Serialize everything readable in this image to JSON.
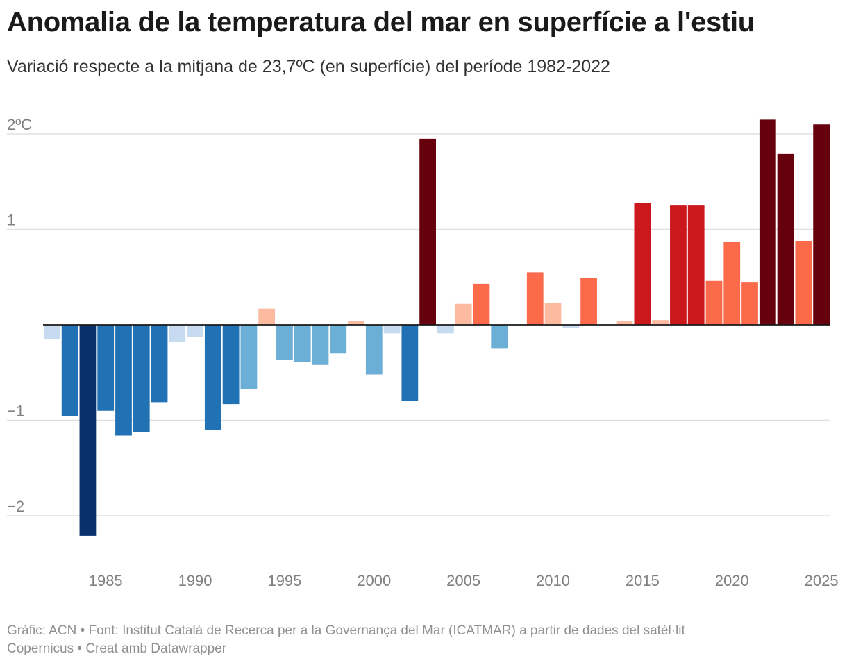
{
  "title": "Anomalia de la temperatura del mar en superfície a l'estiu",
  "subtitle": "Variació respecte a la mitjana de 23,7ºC (en superfície) del període 1982-2022",
  "footer": {
    "line1": "Gràfic: ACN • Font: Institut Català de Recerca per a la Governança del Mar (ICATMAR) a partir de dades del satèl·lit",
    "line2": "Copernicus  • Creat amb Datawrapper"
  },
  "chart_data": {
    "type": "bar",
    "title": "Anomalia de la temperatura del mar en superfície a l'estiu",
    "xlabel": "",
    "ylabel": "",
    "ylim": [
      -2.3,
      2.2
    ],
    "y_ticks": [
      {
        "value": 2,
        "label": "2ºC"
      },
      {
        "value": 1,
        "label": "1"
      },
      {
        "value": -1,
        "label": "−1"
      },
      {
        "value": -2,
        "label": "−2"
      }
    ],
    "x_ticks": [
      {
        "value": 1985,
        "label": "1985"
      },
      {
        "value": 1990,
        "label": "1990"
      },
      {
        "value": 1995,
        "label": "1995"
      },
      {
        "value": 2000,
        "label": "2000"
      },
      {
        "value": 2005,
        "label": "2005"
      },
      {
        "value": 2010,
        "label": "2010"
      },
      {
        "value": 2015,
        "label": "2015"
      },
      {
        "value": 2020,
        "label": "2020"
      },
      {
        "value": 2025,
        "label": "2025"
      }
    ],
    "categories": [
      1982,
      1983,
      1984,
      1985,
      1986,
      1987,
      1988,
      1989,
      1990,
      1991,
      1992,
      1993,
      1994,
      1995,
      1996,
      1997,
      1998,
      1999,
      2000,
      2001,
      2002,
      2003,
      2004,
      2005,
      2006,
      2007,
      2008,
      2009,
      2010,
      2011,
      2012,
      2013,
      2014,
      2015,
      2016,
      2017,
      2018,
      2019,
      2020,
      2021,
      2022,
      2023,
      2024,
      2025
    ],
    "values": [
      -0.15,
      -0.96,
      -2.21,
      -0.9,
      -1.16,
      -1.12,
      -0.81,
      -0.18,
      -0.13,
      -1.1,
      -0.83,
      -0.67,
      0.17,
      -0.37,
      -0.39,
      -0.42,
      -0.3,
      0.04,
      -0.52,
      -0.09,
      -0.8,
      1.95,
      -0.09,
      0.22,
      0.43,
      -0.25,
      0.0,
      0.55,
      0.23,
      -0.03,
      0.49,
      -0.01,
      0.04,
      1.28,
      0.05,
      1.25,
      1.25,
      0.46,
      0.87,
      0.45,
      2.15,
      1.79,
      0.88,
      2.1
    ],
    "color_scale": {
      "very_cold": "#08306b",
      "cold": "#2171b5",
      "cool": "#6baed6",
      "slightly_cool": "#c6dbef",
      "slightly_warm": "#fcbba1",
      "warm": "#fb6a4a",
      "hot": "#cb181d",
      "very_hot": "#67000d"
    },
    "gridline_color": "#e0e0e0",
    "zero_line_color": "#1a1a1a"
  }
}
